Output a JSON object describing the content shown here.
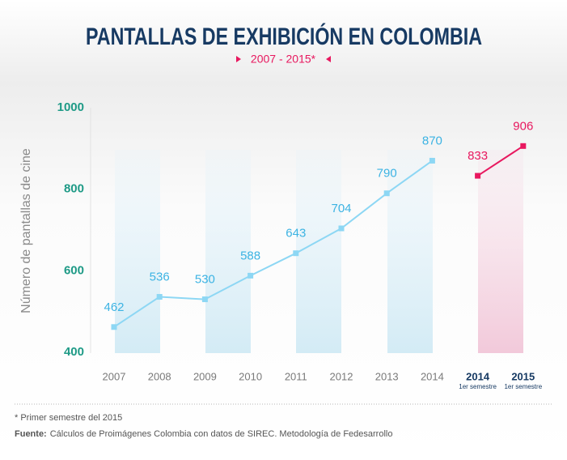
{
  "chart_data": {
    "type": "line",
    "title": "PANTALLAS DE EXHIBICIÓN EN COLOMBIA",
    "subtitle": "2007 - 2015*",
    "y_label": "Número de pantallas de cine",
    "categories": [
      "2007",
      "2008",
      "2009",
      "2010",
      "2011",
      "2012",
      "2013",
      "2014",
      "2014",
      "2015"
    ],
    "category_sublabels": [
      null,
      null,
      null,
      null,
      null,
      null,
      null,
      null,
      "1er semestre",
      "1er semestre"
    ],
    "series": [
      {
        "color": "#8dd7f4",
        "label_color": "#3cb3e3",
        "values": [
          462,
          536,
          530,
          588,
          643,
          704,
          790,
          870,
          null,
          null
        ]
      },
      {
        "color": "#e8185f",
        "label_color": "#e8185f",
        "values": [
          null,
          null,
          null,
          null,
          null,
          null,
          null,
          null,
          833,
          906
        ]
      }
    ],
    "ylim": [
      400,
      1000
    ],
    "yticks": [
      400,
      600,
      800,
      1000
    ],
    "note": "* Primer semestre del 2015",
    "source_label": "Fuente:",
    "source_text": "Cálculos de Proimágenes Colombia con datos de SIREC. Metodología de Fedesarrollo"
  }
}
